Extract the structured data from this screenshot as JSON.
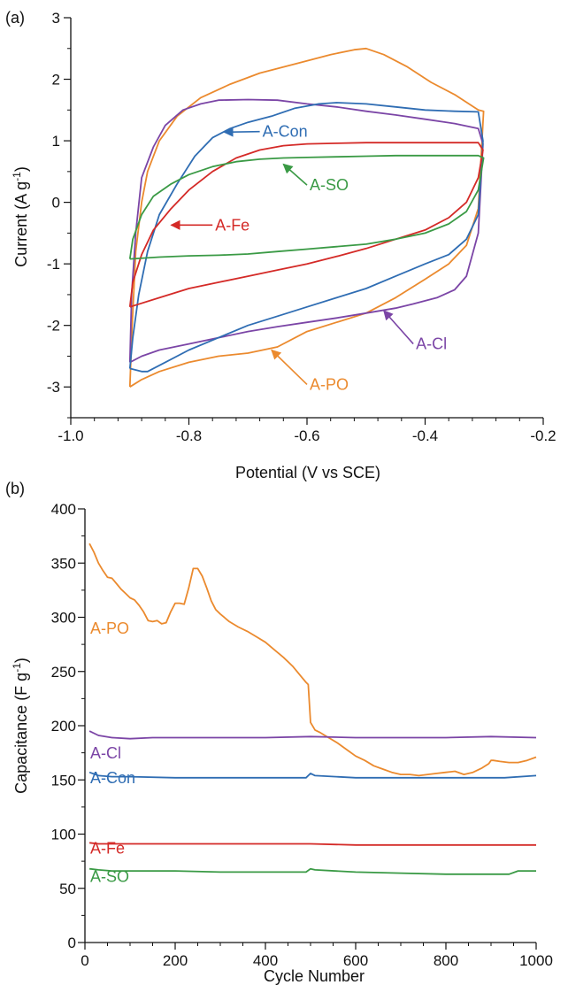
{
  "colors": {
    "A-Con": "#2f6db3",
    "A-SO": "#3a9a45",
    "A-Fe": "#d42a27",
    "A-Cl": "#7b45a6",
    "A-PO": "#eb8a2e",
    "axis": "#111111"
  },
  "chart_data": [
    {
      "type": "line",
      "panel_label": "(a)",
      "xlabel": "Potential (V vs SCE)",
      "ylabel_main": "Current (A g",
      "ylabel_sup": "-1",
      "ylabel_end": ")",
      "xlim": [
        -1.0,
        -0.2
      ],
      "ylim": [
        -3.5,
        3.0
      ],
      "xticks": [
        "-1.0",
        "-0.8",
        "-0.6",
        "-0.4",
        "-0.2"
      ],
      "yticks": [
        "-3",
        "-2",
        "-1",
        "0",
        "1",
        "2",
        "3"
      ],
      "grid": false,
      "series": [
        {
          "name": "A-PO",
          "x": [
            -0.9,
            -0.896,
            -0.89,
            -0.88,
            -0.87,
            -0.85,
            -0.82,
            -0.78,
            -0.73,
            -0.68,
            -0.62,
            -0.56,
            -0.52,
            -0.5,
            -0.47,
            -0.43,
            -0.39,
            -0.35,
            -0.31,
            -0.301,
            -0.31,
            -0.33,
            -0.36,
            -0.4,
            -0.45,
            -0.5,
            -0.55,
            -0.6,
            -0.65,
            -0.7,
            -0.75,
            -0.8,
            -0.85,
            -0.88,
            -0.9
          ],
          "y": [
            -3.0,
            -2.0,
            -0.8,
            0.0,
            0.5,
            1.0,
            1.4,
            1.7,
            1.92,
            2.1,
            2.25,
            2.4,
            2.48,
            2.5,
            2.4,
            2.2,
            1.95,
            1.75,
            1.5,
            1.48,
            -0.1,
            -0.7,
            -1.0,
            -1.25,
            -1.55,
            -1.8,
            -1.95,
            -2.1,
            -2.35,
            -2.45,
            -2.5,
            -2.6,
            -2.75,
            -2.88,
            -3.0
          ]
        },
        {
          "name": "A-Cl",
          "x": [
            -0.9,
            -0.897,
            -0.89,
            -0.88,
            -0.86,
            -0.84,
            -0.81,
            -0.78,
            -0.75,
            -0.7,
            -0.65,
            -0.6,
            -0.55,
            -0.5,
            -0.45,
            -0.4,
            -0.35,
            -0.31,
            -0.302,
            -0.31,
            -0.33,
            -0.35,
            -0.38,
            -0.42,
            -0.45,
            -0.5,
            -0.55,
            -0.6,
            -0.65,
            -0.7,
            -0.75,
            -0.8,
            -0.85,
            -0.88,
            -0.9
          ],
          "y": [
            -2.6,
            -1.5,
            -0.5,
            0.4,
            0.9,
            1.25,
            1.5,
            1.6,
            1.66,
            1.67,
            1.66,
            1.6,
            1.55,
            1.48,
            1.42,
            1.35,
            1.28,
            1.2,
            0.95,
            -0.5,
            -1.2,
            -1.42,
            -1.55,
            -1.65,
            -1.72,
            -1.8,
            -1.88,
            -1.95,
            -2.02,
            -2.1,
            -2.2,
            -2.3,
            -2.4,
            -2.5,
            -2.6
          ]
        },
        {
          "name": "A-Con",
          "x": [
            -0.9,
            -0.895,
            -0.885,
            -0.87,
            -0.85,
            -0.82,
            -0.79,
            -0.76,
            -0.73,
            -0.7,
            -0.66,
            -0.62,
            -0.58,
            -0.55,
            -0.5,
            -0.45,
            -0.4,
            -0.35,
            -0.31,
            -0.302,
            -0.31,
            -0.33,
            -0.36,
            -0.4,
            -0.45,
            -0.5,
            -0.55,
            -0.6,
            -0.65,
            -0.7,
            -0.75,
            -0.8,
            -0.84,
            -0.87,
            -0.88,
            -0.9
          ],
          "y": [
            -2.7,
            -2.2,
            -1.5,
            -0.8,
            -0.2,
            0.3,
            0.75,
            1.05,
            1.2,
            1.3,
            1.4,
            1.53,
            1.6,
            1.62,
            1.6,
            1.55,
            1.5,
            1.48,
            1.47,
            1.0,
            -0.2,
            -0.6,
            -0.85,
            -1.0,
            -1.2,
            -1.4,
            -1.55,
            -1.7,
            -1.85,
            -2.0,
            -2.2,
            -2.4,
            -2.6,
            -2.75,
            -2.75,
            -2.7
          ]
        },
        {
          "name": "A-Fe",
          "x": [
            -0.9,
            -0.895,
            -0.88,
            -0.86,
            -0.83,
            -0.8,
            -0.76,
            -0.72,
            -0.68,
            -0.64,
            -0.6,
            -0.55,
            -0.5,
            -0.45,
            -0.4,
            -0.35,
            -0.31,
            -0.302,
            -0.31,
            -0.33,
            -0.36,
            -0.4,
            -0.45,
            -0.5,
            -0.55,
            -0.6,
            -0.65,
            -0.7,
            -0.75,
            -0.8,
            -0.85,
            -0.9
          ],
          "y": [
            -1.7,
            -1.3,
            -0.85,
            -0.45,
            -0.1,
            0.2,
            0.5,
            0.72,
            0.85,
            0.92,
            0.95,
            0.96,
            0.97,
            0.97,
            0.97,
            0.97,
            0.97,
            0.85,
            0.4,
            0.0,
            -0.25,
            -0.45,
            -0.6,
            -0.75,
            -0.88,
            -1.0,
            -1.1,
            -1.2,
            -1.3,
            -1.4,
            -1.55,
            -1.7
          ]
        },
        {
          "name": "A-SO",
          "x": [
            -0.9,
            -0.895,
            -0.88,
            -0.86,
            -0.83,
            -0.8,
            -0.76,
            -0.72,
            -0.68,
            -0.64,
            -0.6,
            -0.55,
            -0.5,
            -0.45,
            -0.4,
            -0.35,
            -0.31,
            -0.301,
            -0.31,
            -0.33,
            -0.36,
            -0.4,
            -0.45,
            -0.5,
            -0.55,
            -0.6,
            -0.65,
            -0.7,
            -0.75,
            -0.8,
            -0.85,
            -0.9
          ],
          "y": [
            -0.92,
            -0.6,
            -0.2,
            0.1,
            0.3,
            0.45,
            0.58,
            0.66,
            0.7,
            0.72,
            0.73,
            0.74,
            0.75,
            0.76,
            0.76,
            0.76,
            0.76,
            0.72,
            0.2,
            -0.15,
            -0.35,
            -0.5,
            -0.6,
            -0.68,
            -0.72,
            -0.76,
            -0.8,
            -0.84,
            -0.86,
            -0.87,
            -0.89,
            -0.92
          ]
        }
      ],
      "annotations": [
        {
          "text": "A-Con",
          "series": "A-Con",
          "from": [
            -0.68,
            1.15
          ],
          "to": [
            -0.74,
            1.14
          ]
        },
        {
          "text": "A-SO",
          "series": "A-SO",
          "from": [
            -0.6,
            0.28
          ],
          "to": [
            -0.64,
            0.62
          ]
        },
        {
          "text": "A-Fe",
          "series": "A-Fe",
          "from": [
            -0.76,
            -0.37
          ],
          "to": [
            -0.83,
            -0.37
          ]
        },
        {
          "text": "A-Cl",
          "series": "A-Cl",
          "from": [
            -0.42,
            -2.3
          ],
          "to": [
            -0.47,
            -1.76
          ]
        },
        {
          "text": "A-PO",
          "series": "A-PO",
          "from": [
            -0.6,
            -2.96
          ],
          "to": [
            -0.66,
            -2.4
          ]
        }
      ]
    },
    {
      "type": "line",
      "panel_label": "(b)",
      "xlabel": "Cycle Number",
      "ylabel_main": "Capacitance (F g",
      "ylabel_sup": "-1",
      "ylabel_end": ")",
      "xlim": [
        0,
        1000
      ],
      "ylim": [
        0,
        400
      ],
      "xticks": [
        "0",
        "200",
        "400",
        "600",
        "800",
        "1000"
      ],
      "yticks": [
        "0",
        "50",
        "100",
        "150",
        "200",
        "250",
        "300",
        "350",
        "400"
      ],
      "grid": false,
      "series": [
        {
          "name": "A-PO",
          "x": [
            10,
            20,
            30,
            40,
            50,
            60,
            70,
            80,
            90,
            100,
            110,
            120,
            130,
            140,
            150,
            160,
            170,
            180,
            190,
            200,
            210,
            220,
            230,
            240,
            250,
            260,
            270,
            280,
            290,
            300,
            320,
            340,
            360,
            380,
            400,
            420,
            440,
            460,
            480,
            490,
            495,
            500,
            510,
            520,
            540,
            560,
            580,
            600,
            620,
            640,
            660,
            680,
            700,
            720,
            740,
            760,
            780,
            800,
            820,
            840,
            860,
            880,
            895,
            900,
            905,
            920,
            940,
            960,
            980,
            1000
          ],
          "y": [
            368,
            360,
            350,
            343,
            337,
            336,
            331,
            326,
            322,
            318,
            316,
            311,
            305,
            297,
            296,
            297,
            294,
            295,
            305,
            313,
            313,
            312,
            327,
            345,
            345,
            338,
            327,
            315,
            307,
            303,
            296,
            291,
            287,
            282,
            277,
            270,
            263,
            255,
            245,
            240,
            238,
            203,
            196,
            194,
            189,
            184,
            178,
            172,
            168,
            163,
            160,
            157,
            155,
            155,
            154,
            155,
            156,
            157,
            158,
            155,
            157,
            161,
            165,
            168,
            168,
            167,
            166,
            166,
            168,
            171
          ]
        },
        {
          "name": "A-Cl",
          "x": [
            10,
            30,
            60,
            100,
            150,
            200,
            300,
            400,
            500,
            600,
            700,
            800,
            900,
            1000
          ],
          "y": [
            195,
            191,
            189,
            188,
            189,
            189,
            189,
            189,
            190,
            189,
            189,
            189,
            190,
            189
          ]
        },
        {
          "name": "A-Con",
          "x": [
            10,
            30,
            60,
            100,
            200,
            300,
            400,
            490,
            500,
            510,
            600,
            700,
            800,
            900,
            930,
            1000
          ],
          "y": [
            157,
            154,
            153,
            153,
            152,
            152,
            152,
            152,
            156,
            154,
            152,
            152,
            152,
            152,
            152,
            154
          ]
        },
        {
          "name": "A-Fe",
          "x": [
            10,
            30,
            60,
            100,
            200,
            300,
            400,
            500,
            600,
            700,
            800,
            900,
            1000
          ],
          "y": [
            92,
            91,
            91,
            91,
            91,
            91,
            91,
            91,
            90,
            90,
            90,
            90,
            90
          ]
        },
        {
          "name": "A-SO",
          "x": [
            10,
            30,
            60,
            100,
            200,
            300,
            400,
            490,
            500,
            510,
            600,
            700,
            800,
            900,
            940,
            960,
            1000
          ],
          "y": [
            68,
            67,
            66,
            66,
            66,
            65,
            65,
            65,
            68,
            67,
            65,
            64,
            63,
            63,
            63,
            66,
            66
          ]
        }
      ],
      "inline_labels": [
        {
          "text": "A-PO",
          "series": "A-PO",
          "x": 0,
          "y": 285
        },
        {
          "text": "A-Cl",
          "series": "A-Cl",
          "x": 0,
          "y": 170
        },
        {
          "text": "A-Con",
          "series": "A-Con",
          "x": 0,
          "y": 147
        },
        {
          "text": "A-Fe",
          "series": "A-Fe",
          "x": 0,
          "y": 82
        },
        {
          "text": "A-SO",
          "series": "A-SO",
          "x": 0,
          "y": 56
        }
      ]
    }
  ]
}
